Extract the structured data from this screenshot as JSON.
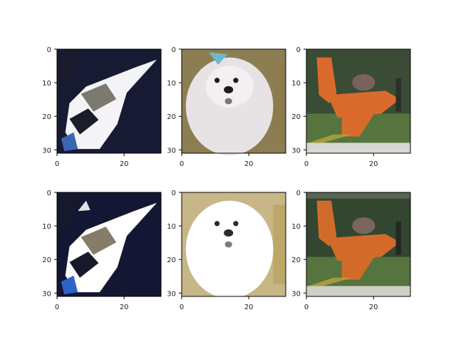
{
  "chart_data": [
    {
      "type": "image",
      "panel": 1,
      "subject": "boat",
      "image_size": [
        32,
        32
      ],
      "xlim": [
        0,
        31
      ],
      "ylim": [
        31,
        0
      ],
      "xticks": [
        0,
        20
      ],
      "yticks": [
        0,
        10,
        20,
        30
      ],
      "palette": {
        "bg": "#171a33",
        "fg": "#f4f4f6",
        "accent": "#6f6c62",
        "dark": "#1b1d2a",
        "blue": "#3a66b4"
      }
    },
    {
      "type": "image",
      "panel": 2,
      "subject": "dog",
      "image_size": [
        32,
        32
      ],
      "xlim": [
        0,
        31
      ],
      "ylim": [
        31,
        0
      ],
      "xticks": [
        0,
        20
      ],
      "yticks": [
        0,
        10,
        20,
        30
      ],
      "palette": {
        "bg": "#8c7e52",
        "fg": "#e7e3e4",
        "accent": "#6fb8c8",
        "dark": "#1f1a1a"
      }
    },
    {
      "type": "image",
      "panel": 3,
      "subject": "airplane",
      "image_size": [
        32,
        32
      ],
      "xlim": [
        0,
        31
      ],
      "ylim": [
        31,
        0
      ],
      "xticks": [
        0,
        20
      ],
      "yticks": [
        0,
        10,
        20,
        30
      ],
      "palette": {
        "bg": "#3a4b36",
        "fg": "#d86b2b",
        "accent": "#7a625c",
        "dark": "#2a2f28",
        "light": "#d7d7d3"
      }
    },
    {
      "type": "image",
      "panel": 4,
      "subject": "boat",
      "image_size": [
        32,
        32
      ],
      "xlim": [
        0,
        31
      ],
      "ylim": [
        31,
        0
      ],
      "xticks": [
        0,
        20
      ],
      "yticks": [
        0,
        10,
        20,
        30
      ],
      "palette": {
        "bg": "#141733",
        "fg": "#ffffff",
        "accent": "#7a6e58",
        "dark": "#17192a",
        "blue": "#2d64c8"
      }
    },
    {
      "type": "image",
      "panel": 5,
      "subject": "dog",
      "image_size": [
        32,
        32
      ],
      "xlim": [
        0,
        31
      ],
      "ylim": [
        31,
        0
      ],
      "xticks": [
        0,
        20
      ],
      "yticks": [
        0,
        10,
        20,
        30
      ],
      "palette": {
        "bg": "#c7b786",
        "fg": "#ffffff",
        "accent": "#f5f5f2",
        "dark": "#2b2a32"
      }
    },
    {
      "type": "image",
      "panel": 6,
      "subject": "airplane",
      "image_size": [
        32,
        32
      ],
      "xlim": [
        0,
        31
      ],
      "ylim": [
        31,
        0
      ],
      "xticks": [
        0,
        20
      ],
      "yticks": [
        0,
        10,
        20,
        30
      ],
      "palette": {
        "bg": "#33462f",
        "fg": "#d26b2a",
        "accent": "#7b655f",
        "dark": "#232823",
        "light": "#cfcfc8"
      }
    }
  ]
}
